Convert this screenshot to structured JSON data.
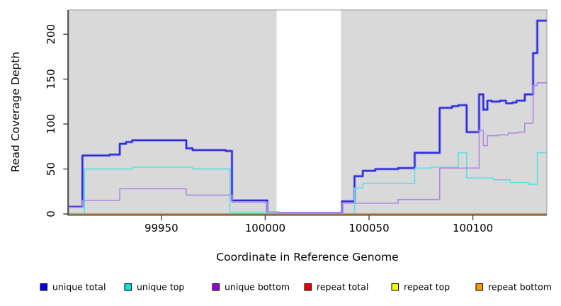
{
  "figure": {
    "plot_background": "#d9d9d9",
    "plot_border_color": "#999999",
    "axis_color": "#333333",
    "gap_band": {
      "x_start": 100005.5,
      "x_end": 100036.5,
      "color": "#ffffff"
    },
    "baseline_artifact": {
      "from": 99905.4,
      "to": 99913,
      "value": 0.4,
      "color": "#a5dcb0"
    }
  },
  "chart_data": {
    "type": "line",
    "step": true,
    "title": "",
    "xlabel": "Coordinate in Reference Genome",
    "ylabel": "Read Coverage Depth",
    "xlim": [
      99905.4,
      100135.6
    ],
    "ylim": [
      0,
      227
    ],
    "x_ticks": [
      99950,
      100000,
      100050,
      100100
    ],
    "y_ticks": [
      0,
      50,
      100,
      150,
      200
    ],
    "grid": false,
    "legend_position": "bottom",
    "series": [
      {
        "name": "unique total",
        "line_color": "#2b2bd6",
        "halo_color": "#9090ef",
        "line_width": 2,
        "legend_fill": "#0000e0",
        "points": [
          [
            99905,
            8
          ],
          [
            99912,
            65
          ],
          [
            99925,
            66
          ],
          [
            99930,
            78
          ],
          [
            99933,
            80
          ],
          [
            99936,
            82
          ],
          [
            99962,
            73
          ],
          [
            99965,
            71
          ],
          [
            99981,
            70
          ],
          [
            99984,
            15
          ],
          [
            100001,
            1.5
          ],
          [
            100006,
            0.7
          ],
          [
            100037,
            14
          ],
          [
            100043,
            42
          ],
          [
            100047,
            48
          ],
          [
            100053,
            50
          ],
          [
            100064,
            51
          ],
          [
            100072,
            68
          ],
          [
            100084,
            118
          ],
          [
            100090,
            120
          ],
          [
            100093,
            121
          ],
          [
            100097,
            91
          ],
          [
            100103,
            133
          ],
          [
            100105,
            116
          ],
          [
            100107,
            126
          ],
          [
            100109,
            125
          ],
          [
            100113,
            126
          ],
          [
            100116,
            123
          ],
          [
            100119,
            124
          ],
          [
            100121,
            126
          ],
          [
            100125,
            133
          ],
          [
            100129,
            179
          ],
          [
            100131,
            215
          ]
        ]
      },
      {
        "name": "unique top",
        "line_color": "#5adfe8",
        "line_width": 1.6,
        "legend_fill": "#00e5e5",
        "points": [
          [
            99905,
            0.5
          ],
          [
            99913,
            50
          ],
          [
            99936,
            52
          ],
          [
            99965,
            50
          ],
          [
            99983,
            2
          ],
          [
            100006,
            0.3
          ],
          [
            100043,
            29
          ],
          [
            100047,
            34
          ],
          [
            100072,
            51
          ],
          [
            100080,
            52
          ],
          [
            100093,
            68
          ],
          [
            100097,
            40
          ],
          [
            100110,
            38
          ],
          [
            100118,
            35
          ],
          [
            100127,
            33
          ],
          [
            100131,
            68
          ]
        ]
      },
      {
        "name": "unique bottom",
        "line_color": "#b287e2",
        "line_width": 1.6,
        "legend_fill": "#9400d3",
        "points": [
          [
            99905,
            7.5
          ],
          [
            99912,
            15
          ],
          [
            99930,
            28
          ],
          [
            99962,
            21
          ],
          [
            99984,
            13
          ],
          [
            100001,
            1
          ],
          [
            100006,
            0.4
          ],
          [
            100037,
            12
          ],
          [
            100064,
            16
          ],
          [
            100084,
            51
          ],
          [
            100103,
            93
          ],
          [
            100105,
            76
          ],
          [
            100107,
            87
          ],
          [
            100112,
            88
          ],
          [
            100117,
            90
          ],
          [
            100122,
            91
          ],
          [
            100125,
            101
          ],
          [
            100129,
            143
          ],
          [
            100131,
            146
          ]
        ]
      },
      {
        "name": "repeat total",
        "line_color": "#dd2222",
        "line_width": 1.6,
        "legend_fill": "#e60000",
        "points": [
          [
            99905,
            0
          ]
        ]
      },
      {
        "name": "repeat top",
        "line_color": "#eeee00",
        "line_width": 1.6,
        "legend_fill": "#ffff00",
        "points": [
          [
            99905,
            0
          ]
        ]
      },
      {
        "name": "repeat bottom",
        "line_color": "#ff982e",
        "line_width": 2,
        "legend_fill": "#ff9900",
        "points": [
          [
            99913,
            0
          ]
        ]
      }
    ]
  }
}
